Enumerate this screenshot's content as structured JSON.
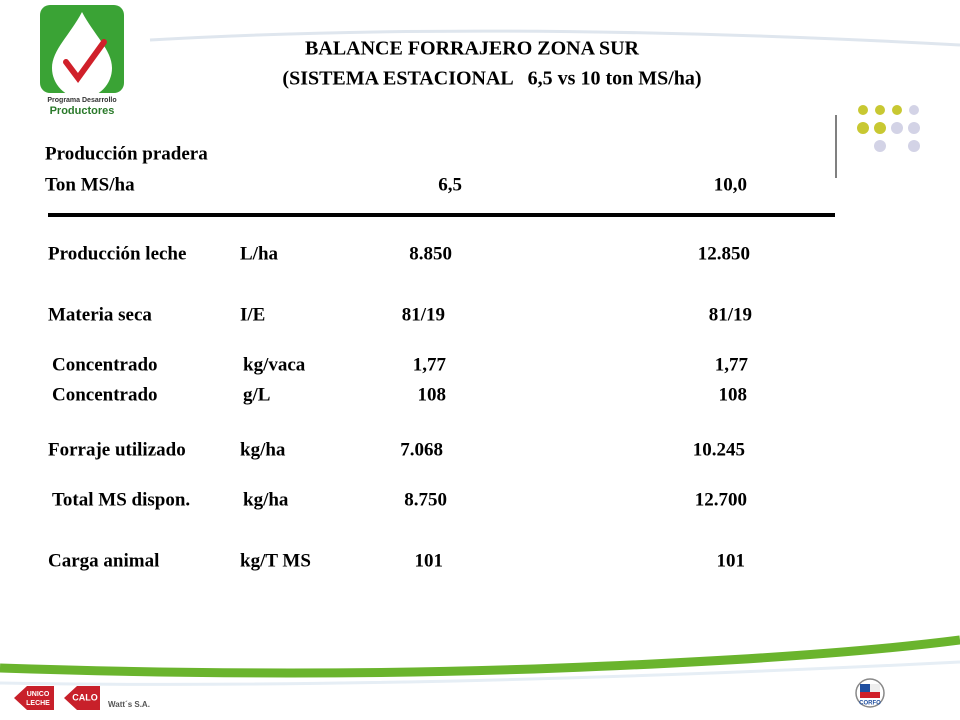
{
  "header": {
    "title_line1": "BALANCE FORRAJERO ZONA SUR",
    "title_line2": "(SISTEMA ESTACIONAL   6,5 vs 10 ton MS/ha)"
  },
  "logo": {
    "line1": "Programa Desarrollo",
    "line2": "Productores"
  },
  "table": {
    "heading": "Producción pradera",
    "header_row": [
      "Ton MS/ha",
      "6,5",
      "10,0"
    ],
    "rows": [
      [
        "Producción leche",
        "L/ha",
        "8.850",
        "12.850"
      ],
      [
        "Materia seca",
        "I/E",
        "81/19",
        "81/19"
      ],
      [
        "Concentrado",
        "kg/vaca",
        "1,77",
        "1,77"
      ],
      [
        "Concentrado",
        "g/L",
        "108",
        "108"
      ],
      [
        "Forraje utilizado",
        "kg/ha",
        "7.068",
        "10.245"
      ],
      [
        "Total MS dispon.",
        "kg/ha",
        "8.750",
        "12.700"
      ],
      [
        "Carga animal",
        "kg/T MS",
        "101",
        "101"
      ]
    ]
  },
  "footer": {
    "sponsors": [
      "UNICO",
      "LECHE",
      "CALO",
      "Watt´s S.A.",
      "CORFO"
    ]
  }
}
